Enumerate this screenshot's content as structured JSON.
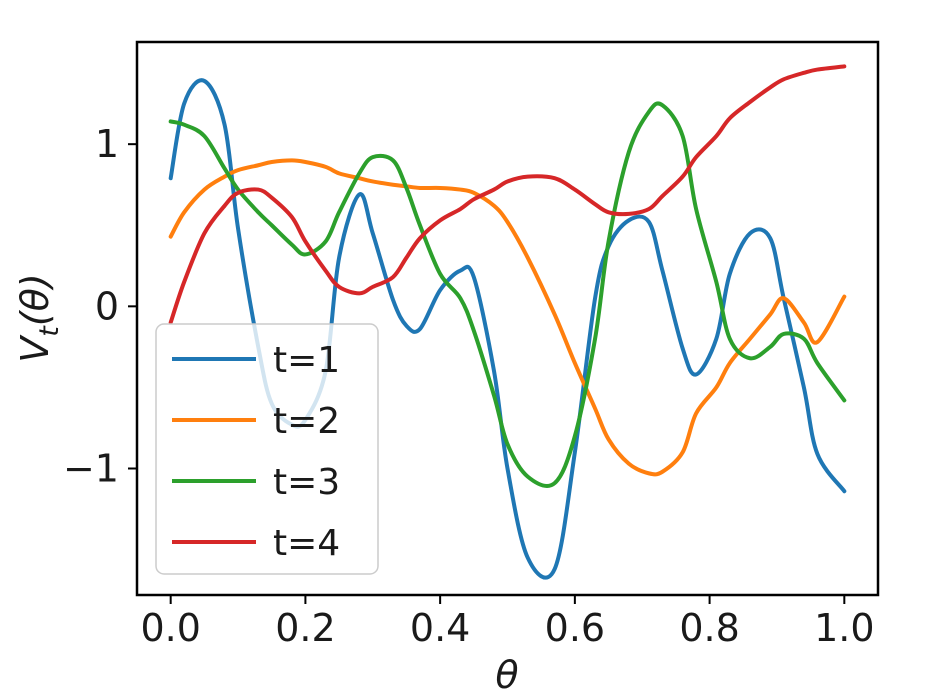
{
  "chart_data": {
    "type": "line",
    "title": "",
    "xlabel": "θ",
    "ylabel": "V_t(θ)",
    "xlim": [
      -0.05,
      1.05
    ],
    "ylim": [
      -1.78,
      1.63
    ],
    "xticks": [
      0.0,
      0.2,
      0.4,
      0.6,
      0.8,
      1.0
    ],
    "xtick_labels": [
      "0.0",
      "0.2",
      "0.4",
      "0.6",
      "0.8",
      "1.0"
    ],
    "yticks": [
      1,
      0,
      -1
    ],
    "ytick_labels": [
      "1",
      "0",
      "−1"
    ],
    "grid": false,
    "legend_position": "lower-left",
    "x": [
      0.0,
      0.02,
      0.05,
      0.08,
      0.1,
      0.13,
      0.15,
      0.18,
      0.2,
      0.23,
      0.25,
      0.28,
      0.3,
      0.33,
      0.35,
      0.37,
      0.4,
      0.43,
      0.45,
      0.48,
      0.5,
      0.53,
      0.57,
      0.6,
      0.63,
      0.65,
      0.68,
      0.71,
      0.73,
      0.76,
      0.78,
      0.81,
      0.83,
      0.86,
      0.89,
      0.91,
      0.94,
      0.96,
      1.0
    ],
    "series": [
      {
        "name": "t=1",
        "color": "#1f77b4",
        "values": [
          0.79,
          1.25,
          1.39,
          1.12,
          0.48,
          -0.25,
          -0.6,
          -0.73,
          -0.7,
          -0.4,
          0.3,
          0.69,
          0.45,
          0.04,
          -0.12,
          -0.14,
          0.1,
          0.22,
          0.18,
          -0.4,
          -1.0,
          -1.55,
          -1.62,
          -0.9,
          0.05,
          0.37,
          0.53,
          0.52,
          0.22,
          -0.26,
          -0.42,
          -0.2,
          0.2,
          0.45,
          0.42,
          0.05,
          -0.5,
          -0.91,
          -1.14
        ]
      },
      {
        "name": "t=2",
        "color": "#ff7f0e",
        "values": [
          0.43,
          0.58,
          0.72,
          0.8,
          0.84,
          0.87,
          0.89,
          0.9,
          0.89,
          0.86,
          0.82,
          0.79,
          0.77,
          0.75,
          0.74,
          0.73,
          0.73,
          0.72,
          0.7,
          0.62,
          0.52,
          0.3,
          -0.05,
          -0.35,
          -0.63,
          -0.82,
          -0.97,
          -1.03,
          -1.02,
          -0.9,
          -0.66,
          -0.5,
          -0.35,
          -0.2,
          -0.05,
          0.05,
          -0.1,
          -0.22,
          0.06
        ]
      },
      {
        "name": "t=3",
        "color": "#2ca02c",
        "values": [
          1.14,
          1.12,
          1.05,
          0.85,
          0.72,
          0.58,
          0.5,
          0.38,
          0.32,
          0.4,
          0.58,
          0.82,
          0.92,
          0.9,
          0.73,
          0.5,
          0.2,
          0.05,
          -0.15,
          -0.55,
          -0.85,
          -1.05,
          -1.09,
          -0.8,
          -0.2,
          0.4,
          0.95,
          1.2,
          1.24,
          1.05,
          0.6,
          0.15,
          -0.2,
          -0.32,
          -0.25,
          -0.17,
          -0.2,
          -0.35,
          -0.58
        ]
      },
      {
        "name": "t=4",
        "color": "#d62728",
        "values": [
          -0.1,
          0.15,
          0.45,
          0.62,
          0.7,
          0.72,
          0.67,
          0.55,
          0.4,
          0.22,
          0.12,
          0.08,
          0.12,
          0.18,
          0.3,
          0.42,
          0.53,
          0.6,
          0.66,
          0.72,
          0.77,
          0.8,
          0.79,
          0.72,
          0.63,
          0.58,
          0.57,
          0.6,
          0.68,
          0.8,
          0.92,
          1.05,
          1.16,
          1.26,
          1.35,
          1.4,
          1.44,
          1.46,
          1.48
        ]
      }
    ]
  }
}
